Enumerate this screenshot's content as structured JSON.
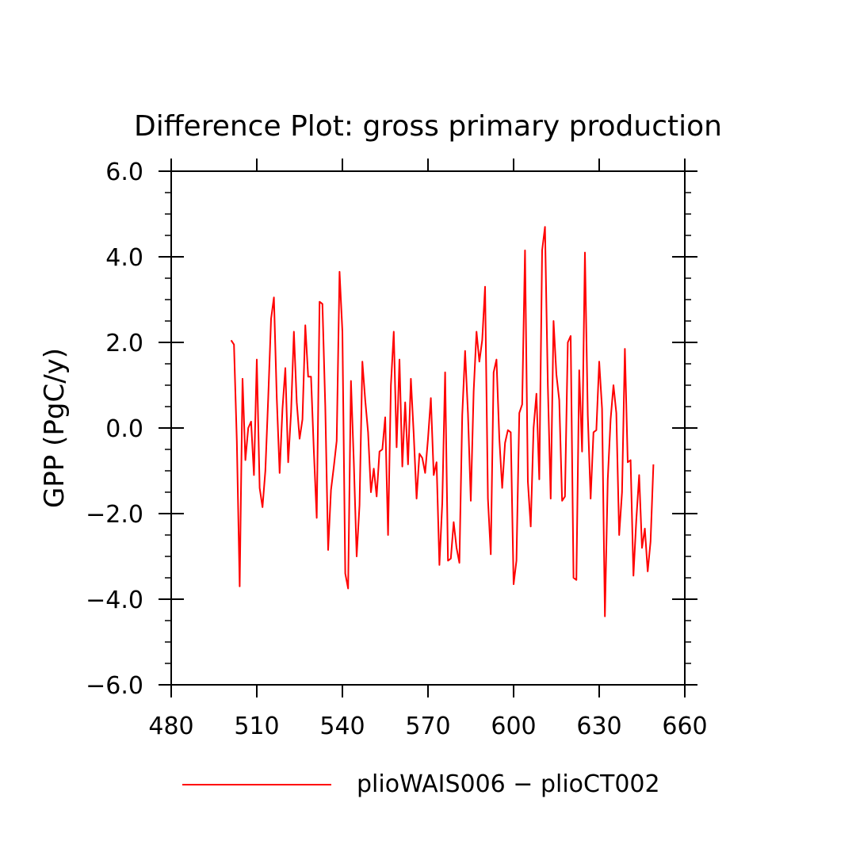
{
  "chart_data": {
    "type": "line",
    "title": "Difference Plot: gross primary production",
    "xlabel": "",
    "ylabel": "GPP  (PgC/y)",
    "xlim": [
      480,
      660
    ],
    "ylim": [
      -6,
      6
    ],
    "x_ticks": [
      480,
      510,
      540,
      570,
      600,
      630,
      660
    ],
    "x_tick_labels": [
      "480",
      "510",
      "540",
      "570",
      "600",
      "630",
      "660"
    ],
    "y_ticks": [
      -6,
      -4,
      -2,
      0,
      2,
      4,
      6
    ],
    "y_tick_labels": [
      "−6.0",
      "−4.0",
      "−2.0",
      "0.0",
      "2.0",
      "4.0",
      "6.0"
    ],
    "y_minor_step": 0.5,
    "grid": false,
    "legend_position": "bottom",
    "series": [
      {
        "name": "plioWAIS006 − plioCT002",
        "color": "#ff0000",
        "x_start": 501,
        "x_step": 1,
        "values": [
          2.05,
          1.95,
          -0.3,
          -3.7,
          1.15,
          -0.75,
          0.0,
          0.15,
          -1.1,
          1.6,
          -1.4,
          -1.85,
          -1.0,
          0.7,
          2.55,
          3.05,
          0.7,
          -1.05,
          0.45,
          1.4,
          -0.8,
          0.35,
          2.25,
          0.6,
          -0.25,
          0.2,
          2.4,
          1.2,
          1.2,
          -0.55,
          -2.1,
          2.95,
          2.9,
          0.5,
          -2.85,
          -1.45,
          -0.9,
          -0.3,
          3.65,
          2.25,
          -3.4,
          -3.75,
          1.1,
          -0.8,
          -3.0,
          -1.8,
          1.55,
          0.65,
          -0.1,
          -1.5,
          -0.95,
          -1.6,
          -0.55,
          -0.5,
          0.25,
          -2.5,
          1.0,
          2.25,
          -0.45,
          1.6,
          -0.9,
          0.6,
          -0.85,
          1.15,
          -0.15,
          -1.65,
          -0.6,
          -0.7,
          -1.05,
          -0.25,
          0.7,
          -1.1,
          -0.8,
          -3.2,
          -1.75,
          1.3,
          -3.1,
          -3.05,
          -2.2,
          -2.8,
          -3.15,
          0.3,
          1.8,
          0.35,
          -1.7,
          0.85,
          2.25,
          1.55,
          2.05,
          3.3,
          -1.65,
          -2.95,
          1.3,
          1.6,
          -0.25,
          -1.4,
          -0.35,
          -0.05,
          -0.1,
          -3.65,
          -3.1,
          0.35,
          0.55,
          4.15,
          -1.25,
          -2.3,
          0.0,
          0.8,
          -1.2,
          4.15,
          4.7,
          1.0,
          -1.65,
          2.5,
          1.25,
          0.65,
          -1.7,
          -1.6,
          2.0,
          2.15,
          -3.5,
          -3.55,
          1.35,
          -0.55,
          4.1,
          0.3,
          -1.65,
          -0.1,
          -0.05,
          1.55,
          0.45,
          -4.4,
          -1.2,
          0.2,
          1.0,
          0.35,
          -2.5,
          -1.5,
          1.85,
          -0.8,
          -0.75,
          -3.45,
          -2.15,
          -1.1,
          -2.8,
          -2.35,
          -3.35,
          -2.65,
          -0.85
        ]
      }
    ]
  }
}
